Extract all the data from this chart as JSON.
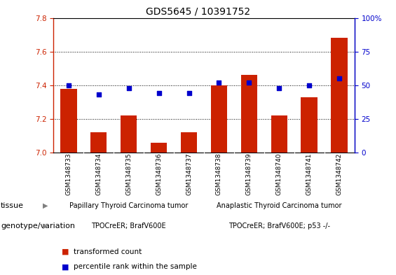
{
  "title": "GDS5645 / 10391752",
  "samples": [
    "GSM1348733",
    "GSM1348734",
    "GSM1348735",
    "GSM1348736",
    "GSM1348737",
    "GSM1348738",
    "GSM1348739",
    "GSM1348740",
    "GSM1348741",
    "GSM1348742"
  ],
  "transformed_count": [
    7.38,
    7.12,
    7.22,
    7.06,
    7.12,
    7.4,
    7.46,
    7.22,
    7.33,
    7.68
  ],
  "percentile_rank": [
    50,
    43,
    48,
    44,
    44,
    52,
    52,
    48,
    50,
    55
  ],
  "ylim_left": [
    7.0,
    7.8
  ],
  "ylim_right": [
    0,
    100
  ],
  "yticks_left": [
    7.0,
    7.2,
    7.4,
    7.6,
    7.8
  ],
  "yticks_right": [
    0,
    25,
    50,
    75,
    100
  ],
  "bar_color": "#cc2200",
  "square_color": "#0000cc",
  "tissue_group1_label": "Papillary Thyroid Carcinoma tumor",
  "tissue_group2_label": "Anaplastic Thyroid Carcinoma tumor",
  "tissue_color": "#90ee90",
  "genotype_group1_label": "TPOCreER; BrafV600E",
  "genotype_group2_label": "TPOCreER; BrafV600E; p53 -/-",
  "genotype_color": "#ee82ee",
  "legend_red_label": "transformed count",
  "legend_blue_label": "percentile rank within the sample",
  "tissue_label": "tissue",
  "genotype_label": "genotype/variation",
  "xtick_bg": "#c0c0c0",
  "plot_bg": "#ffffff",
  "title_fontsize": 10,
  "tick_fontsize": 7.5
}
